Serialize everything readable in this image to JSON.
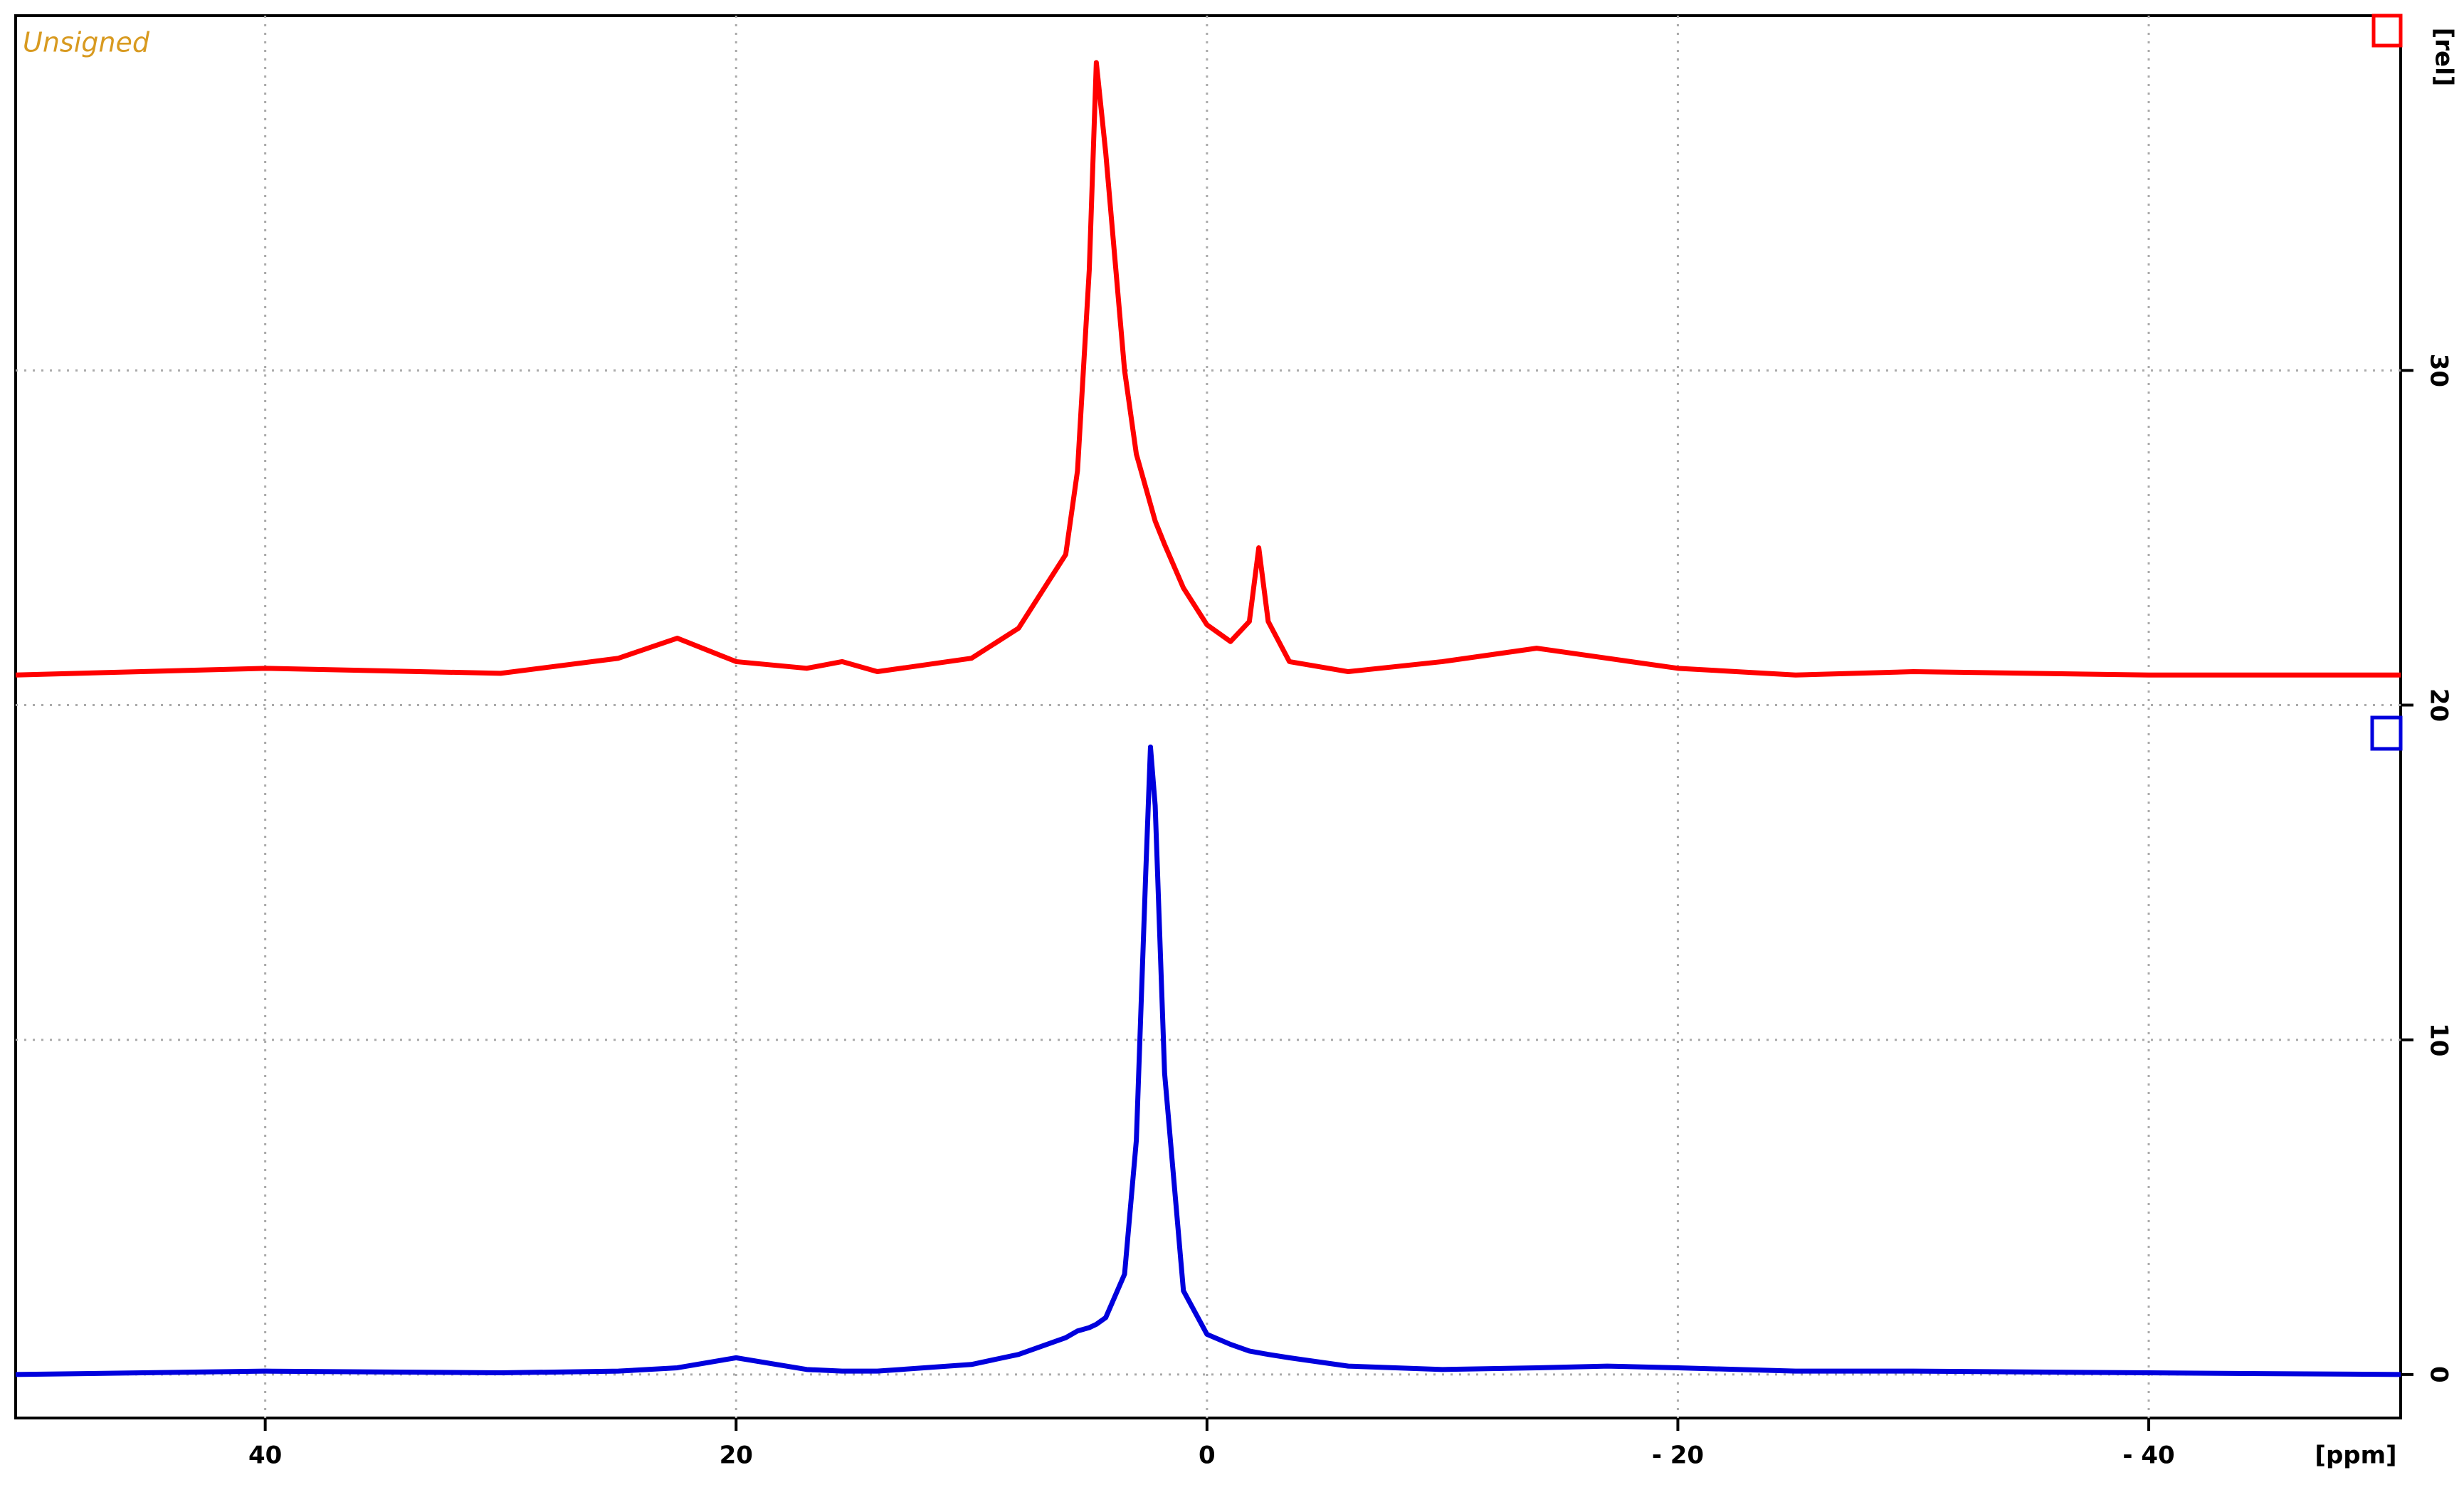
{
  "chart_data": {
    "type": "line",
    "annotation": "Unsigned",
    "x_label": "[ppm]",
    "y_label": "[rel]",
    "x": [
      50.6,
      40,
      30,
      25,
      22.5,
      20,
      17,
      15.5,
      14,
      10,
      8,
      6,
      5.5,
      5,
      4.7,
      4.3,
      3.5,
      3,
      2.6,
      2.4,
      2.2,
      1.8,
      1,
      0,
      -1,
      -1.8,
      -2.2,
      -2.6,
      -3.5,
      -6,
      -10,
      -14,
      -17,
      -20,
      -25,
      -30,
      -40,
      -50.7
    ],
    "series": [
      {
        "color": "#ff0000",
        "values": [
          20.9,
          21.1,
          20.95,
          21.4,
          22.0,
          21.3,
          21.1,
          21.3,
          21.0,
          21.4,
          22.3,
          24.5,
          27,
          33,
          39.2,
          36.5,
          30,
          27.5,
          26.5,
          26,
          25.5,
          24.8,
          23.5,
          22.4,
          21.9,
          22.5,
          24.7,
          22.5,
          21.3,
          21.0,
          21.3,
          21.7,
          21.4,
          21.1,
          20.9,
          21.0,
          20.9,
          20.9
        ]
      },
      {
        "color": "#0000dd",
        "values": [
          0,
          0.1,
          0.05,
          0.1,
          0.2,
          0.5,
          0.15,
          0.1,
          0.1,
          0.3,
          0.6,
          1.1,
          1.3,
          1.4,
          1.5,
          1.7,
          3,
          7,
          15,
          18.75,
          17,
          9,
          2.5,
          1.2,
          0.9,
          0.7,
          0.65,
          0.6,
          0.5,
          0.25,
          0.15,
          0.2,
          0.25,
          0.2,
          0.1,
          0.1,
          0.05,
          0
        ]
      }
    ],
    "xlim": [
      50.6,
      -50.7
    ],
    "ylim": [
      -1.3,
      40.6
    ],
    "xticks": [
      40,
      20,
      0,
      {
        "value": -20,
        "label": "- 20"
      },
      {
        "value": -40,
        "label": "- 40"
      }
    ],
    "yticks": [
      0,
      10,
      20,
      30
    ],
    "grid": true
  }
}
